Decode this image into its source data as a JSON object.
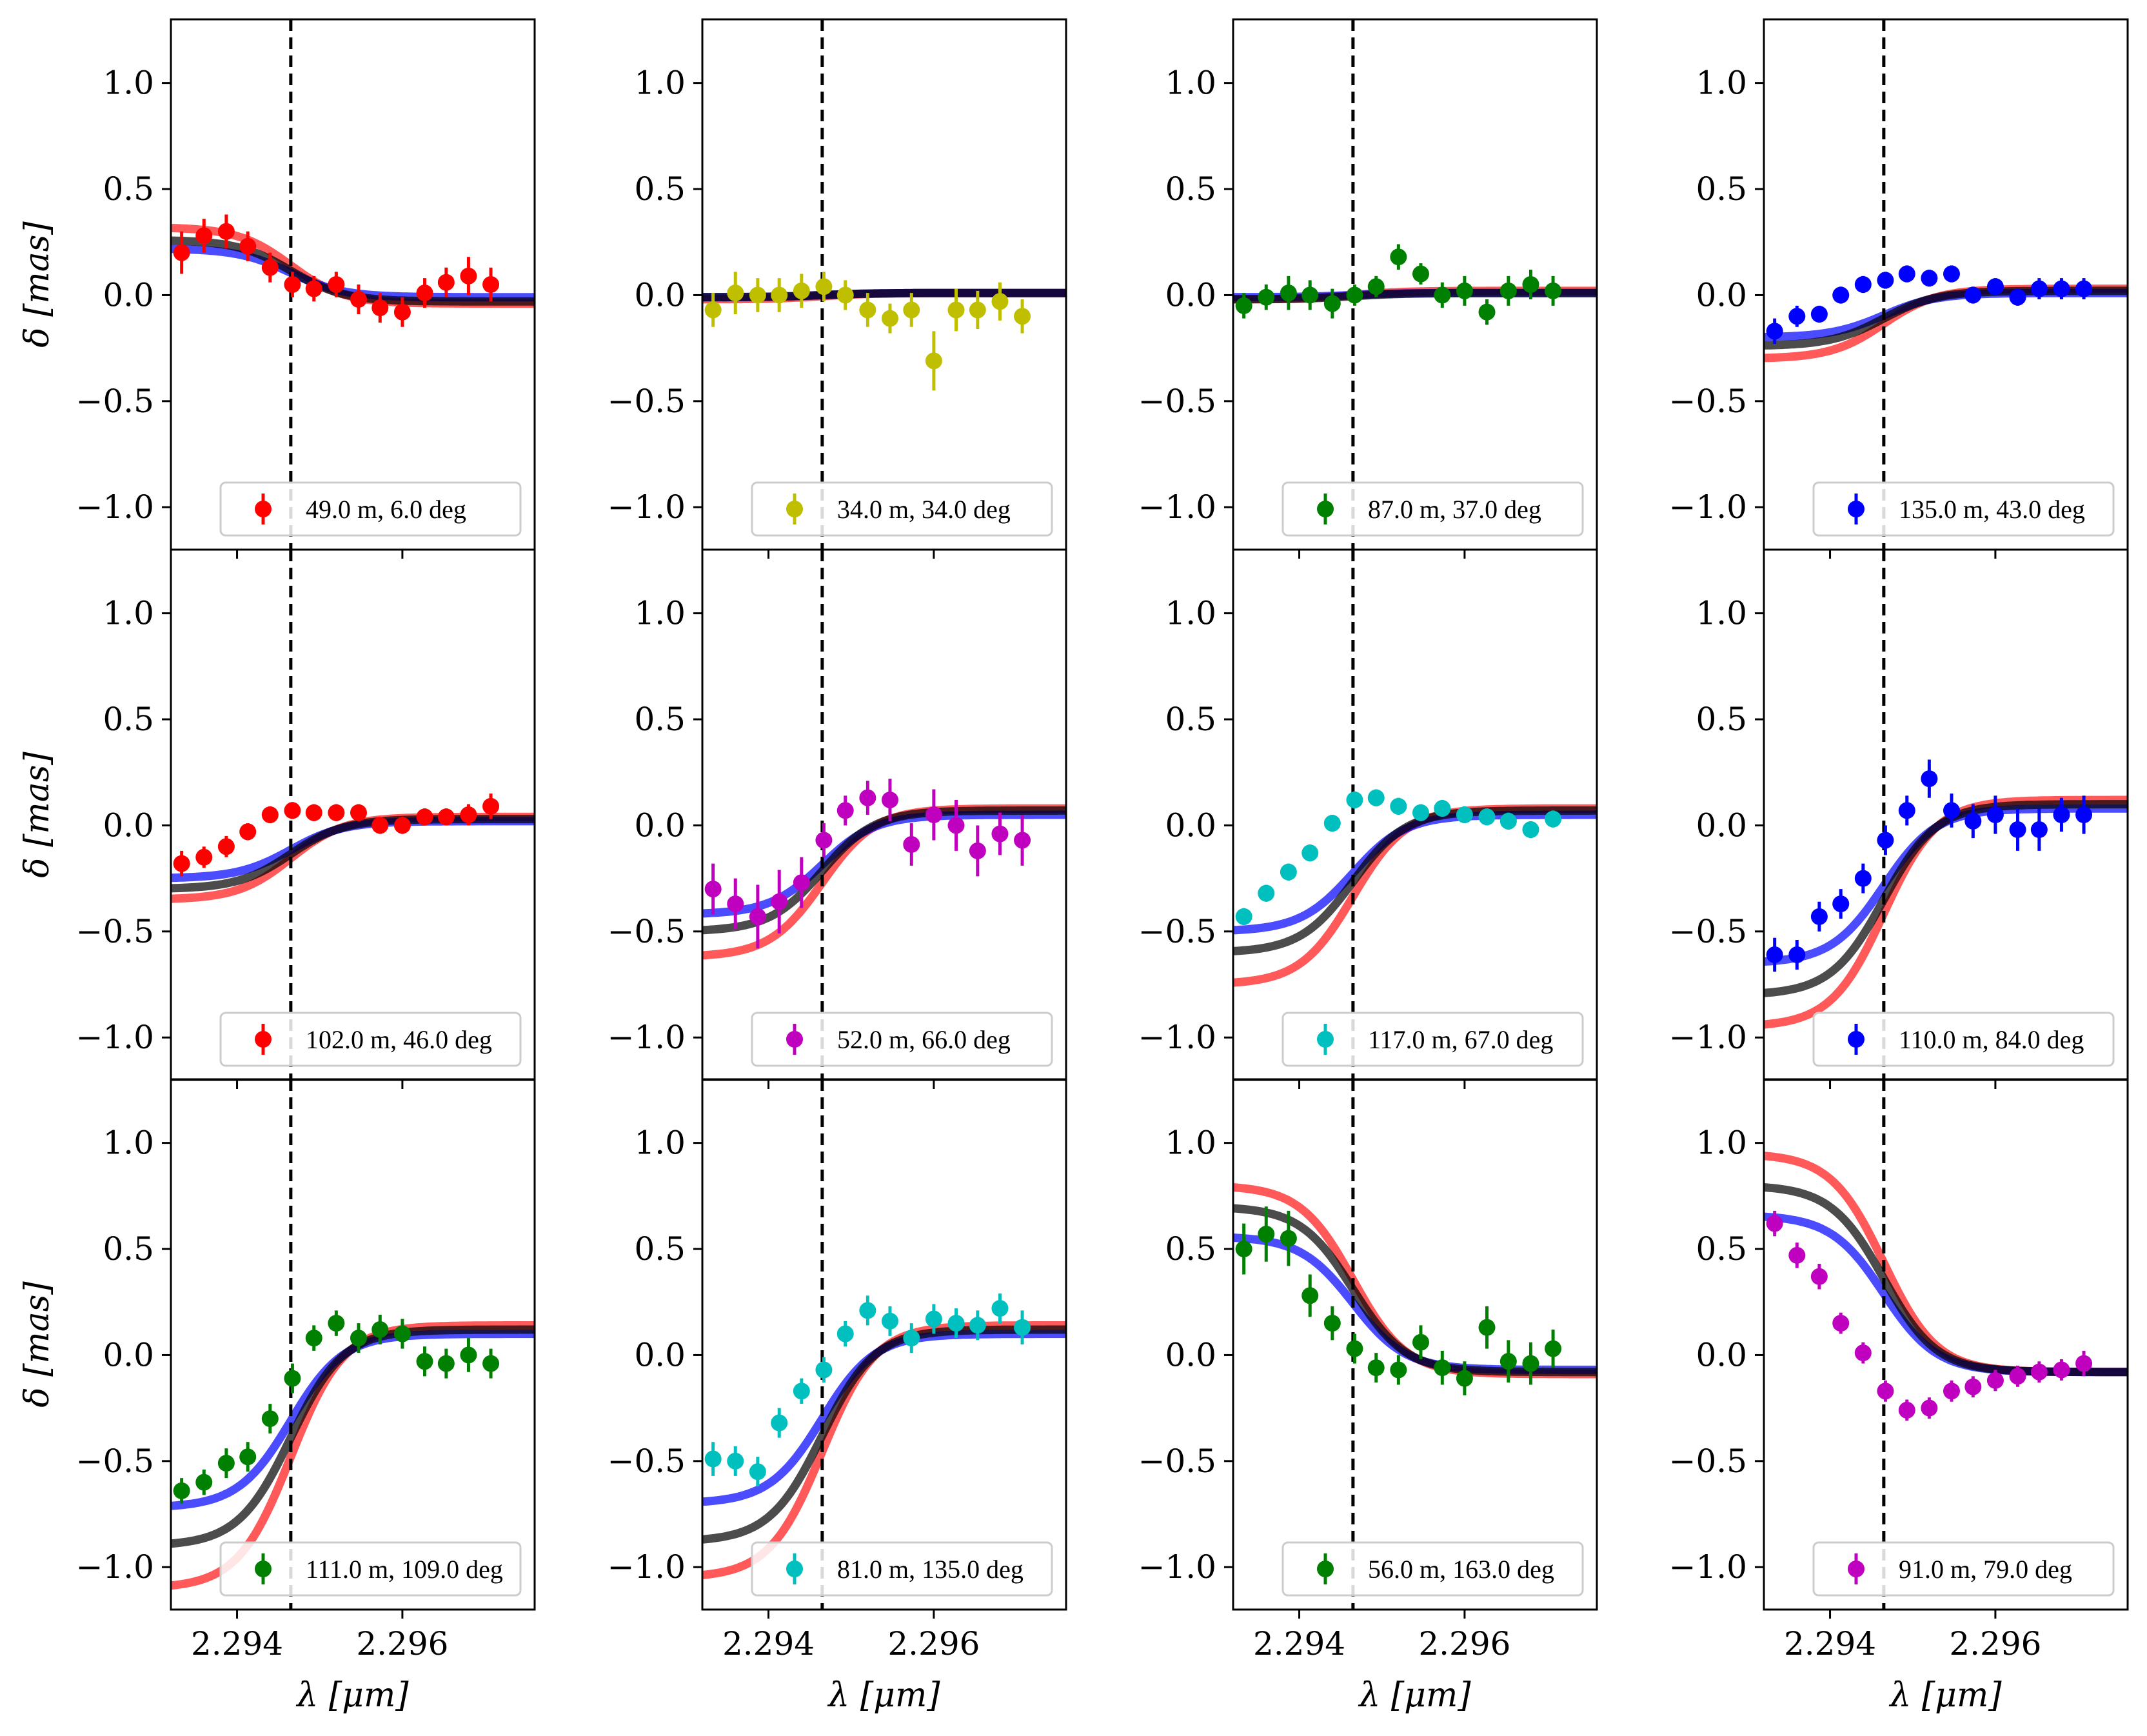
{
  "figure": {
    "xlabel": "λ [μm]",
    "ylabel": "δ [mas]",
    "ylim": [
      -1.2,
      1.3
    ],
    "line_wavelength": 2.29465,
    "yticks": [
      1.0,
      0.5,
      0.0,
      -0.5,
      -1.0
    ],
    "ytick_labels": [
      "1.0",
      "0.5",
      "0.0",
      "−0.5",
      "−1.0"
    ],
    "xticks": [
      2.294,
      2.296
    ],
    "xtick_labels": [
      "2.294",
      "2.296"
    ],
    "model_colors": {
      "red": "#ff0000",
      "blue": "#0000ff",
      "black": "#000000"
    }
  },
  "chart_data": [
    {
      "type": "scatter",
      "legend": "49.0 m, 6.0 deg",
      "color": "#ff0000",
      "xlim": [
        2.2932,
        2.2976
      ],
      "x": [
        2.29333,
        2.2936,
        2.29387,
        2.29413,
        2.2944,
        2.29467,
        2.29493,
        2.2952,
        2.29547,
        2.29573,
        2.296,
        2.29627,
        2.29653,
        2.2968,
        2.29707
      ],
      "y": [
        0.2,
        0.28,
        0.3,
        0.23,
        0.13,
        0.05,
        0.03,
        0.05,
        -0.02,
        -0.06,
        -0.08,
        0.01,
        0.06,
        0.09,
        0.05
      ],
      "err": [
        0.1,
        0.08,
        0.08,
        0.07,
        0.07,
        0.06,
        0.06,
        0.06,
        0.07,
        0.07,
        0.07,
        0.07,
        0.07,
        0.09,
        0.08
      ],
      "models": {
        "red": {
          "a": 0.32,
          "b": -0.04
        },
        "black": {
          "a": 0.26,
          "b": -0.03
        },
        "blue": {
          "a": 0.22,
          "b": -0.01
        }
      }
    },
    {
      "type": "scatter",
      "legend": "34.0 m, 34.0 deg",
      "color": "#bfbf00",
      "xlim": [
        2.2932,
        2.2976
      ],
      "x": [
        2.29333,
        2.2936,
        2.29387,
        2.29413,
        2.2944,
        2.29467,
        2.29493,
        2.2952,
        2.29547,
        2.29573,
        2.296,
        2.29627,
        2.29653,
        2.2968,
        2.29707
      ],
      "y": [
        -0.07,
        0.01,
        0.0,
        0.0,
        0.02,
        0.04,
        0.0,
        -0.07,
        -0.11,
        -0.07,
        -0.31,
        -0.07,
        -0.07,
        -0.03,
        -0.1
      ],
      "err": [
        0.08,
        0.1,
        0.08,
        0.08,
        0.08,
        0.07,
        0.07,
        0.08,
        0.07,
        0.08,
        0.14,
        0.1,
        0.09,
        0.09,
        0.08
      ],
      "models": {
        "red": {
          "a": -0.02,
          "b": 0.01
        },
        "black": {
          "a": -0.01,
          "b": 0.01
        },
        "blue": {
          "a": -0.01,
          "b": 0.01
        }
      }
    },
    {
      "type": "scatter",
      "legend": "87.0 m, 37.0 deg",
      "color": "#008000",
      "xlim": [
        2.2932,
        2.2976
      ],
      "x": [
        2.29333,
        2.2936,
        2.29387,
        2.29413,
        2.2944,
        2.29467,
        2.29493,
        2.2952,
        2.29547,
        2.29573,
        2.296,
        2.29627,
        2.29653,
        2.2968,
        2.29707
      ],
      "y": [
        -0.05,
        -0.01,
        0.01,
        0.0,
        -0.04,
        0.0,
        0.04,
        0.18,
        0.1,
        0.0,
        0.02,
        -0.08,
        0.02,
        0.05,
        0.02
      ],
      "err": [
        0.06,
        0.06,
        0.08,
        0.07,
        0.07,
        0.05,
        0.05,
        0.06,
        0.05,
        0.06,
        0.07,
        0.06,
        0.07,
        0.07,
        0.07
      ],
      "models": {
        "red": {
          "a": -0.02,
          "b": 0.02
        },
        "black": {
          "a": -0.02,
          "b": 0.01
        },
        "blue": {
          "a": -0.01,
          "b": 0.01
        }
      }
    },
    {
      "type": "scatter",
      "legend": "135.0 m, 43.0 deg",
      "color": "#0000ff",
      "xlim": [
        2.2932,
        2.2976
      ],
      "x": [
        2.29333,
        2.2936,
        2.29387,
        2.29413,
        2.2944,
        2.29467,
        2.29493,
        2.2952,
        2.29547,
        2.29573,
        2.296,
        2.29627,
        2.29653,
        2.2968,
        2.29707
      ],
      "y": [
        -0.17,
        -0.1,
        -0.09,
        0.0,
        0.05,
        0.07,
        0.1,
        0.08,
        0.1,
        0.0,
        0.04,
        -0.01,
        0.03,
        0.03,
        0.03
      ],
      "err": [
        0.06,
        0.05,
        0.04,
        0.04,
        0.04,
        0.04,
        0.04,
        0.04,
        0.04,
        0.04,
        0.04,
        0.04,
        0.05,
        0.05,
        0.05
      ],
      "models": {
        "red": {
          "a": -0.3,
          "b": 0.03
        },
        "black": {
          "a": -0.24,
          "b": 0.02
        },
        "blue": {
          "a": -0.2,
          "b": 0.01
        }
      }
    },
    {
      "type": "scatter",
      "legend": "102.0 m, 46.0 deg",
      "color": "#ff0000",
      "xlim": [
        2.2932,
        2.2976
      ],
      "x": [
        2.29333,
        2.2936,
        2.29387,
        2.29413,
        2.2944,
        2.29467,
        2.29493,
        2.2952,
        2.29547,
        2.29573,
        2.296,
        2.29627,
        2.29653,
        2.2968,
        2.29707
      ],
      "y": [
        -0.18,
        -0.15,
        -0.1,
        -0.03,
        0.05,
        0.07,
        0.06,
        0.06,
        0.06,
        0.0,
        0.0,
        0.04,
        0.04,
        0.05,
        0.09
      ],
      "err": [
        0.06,
        0.05,
        0.05,
        0.04,
        0.04,
        0.04,
        0.04,
        0.04,
        0.04,
        0.04,
        0.04,
        0.04,
        0.04,
        0.05,
        0.06
      ],
      "models": {
        "red": {
          "a": -0.35,
          "b": 0.04
        },
        "black": {
          "a": -0.3,
          "b": 0.03
        },
        "blue": {
          "a": -0.25,
          "b": 0.02
        }
      }
    },
    {
      "type": "scatter",
      "legend": "52.0 m, 66.0 deg",
      "color": "#bf00bf",
      "xlim": [
        2.2932,
        2.2976
      ],
      "x": [
        2.29333,
        2.2936,
        2.29387,
        2.29413,
        2.2944,
        2.29467,
        2.29493,
        2.2952,
        2.29547,
        2.29573,
        2.296,
        2.29627,
        2.29653,
        2.2968,
        2.29707
      ],
      "y": [
        -0.3,
        -0.37,
        -0.43,
        -0.36,
        -0.27,
        -0.07,
        0.07,
        0.13,
        0.12,
        -0.09,
        0.05,
        0.0,
        -0.12,
        -0.04,
        -0.07
      ],
      "err": [
        0.12,
        0.12,
        0.15,
        0.15,
        0.12,
        0.08,
        0.07,
        0.08,
        0.1,
        0.1,
        0.12,
        0.12,
        0.12,
        0.1,
        0.12
      ],
      "models": {
        "red": {
          "a": -0.62,
          "b": 0.08
        },
        "black": {
          "a": -0.5,
          "b": 0.07
        },
        "blue": {
          "a": -0.42,
          "b": 0.05
        }
      }
    },
    {
      "type": "scatter",
      "legend": "117.0 m, 67.0 deg",
      "color": "#00bfbf",
      "xlim": [
        2.2932,
        2.2976
      ],
      "x": [
        2.29333,
        2.2936,
        2.29387,
        2.29413,
        2.2944,
        2.29467,
        2.29493,
        2.2952,
        2.29547,
        2.29573,
        2.296,
        2.29627,
        2.29653,
        2.2968,
        2.29707
      ],
      "y": [
        -0.43,
        -0.32,
        -0.22,
        -0.13,
        0.01,
        0.12,
        0.13,
        0.09,
        0.06,
        0.08,
        0.05,
        0.04,
        0.02,
        -0.02,
        0.03
      ],
      "err": [
        0.04,
        0.04,
        0.04,
        0.04,
        0.04,
        0.04,
        0.04,
        0.04,
        0.04,
        0.04,
        0.04,
        0.04,
        0.04,
        0.04,
        0.04
      ],
      "models": {
        "red": {
          "a": -0.75,
          "b": 0.08
        },
        "black": {
          "a": -0.6,
          "b": 0.07
        },
        "blue": {
          "a": -0.5,
          "b": 0.05
        }
      }
    },
    {
      "type": "scatter",
      "legend": "110.0 m, 84.0 deg",
      "color": "#0000ff",
      "xlim": [
        2.2932,
        2.2976
      ],
      "x": [
        2.29333,
        2.2936,
        2.29387,
        2.29413,
        2.2944,
        2.29467,
        2.29493,
        2.2952,
        2.29547,
        2.29573,
        2.296,
        2.29627,
        2.29653,
        2.2968,
        2.29707
      ],
      "y": [
        -0.61,
        -0.61,
        -0.43,
        -0.37,
        -0.25,
        -0.07,
        0.07,
        0.22,
        0.07,
        0.02,
        0.05,
        -0.02,
        -0.02,
        0.05,
        0.05
      ],
      "err": [
        0.08,
        0.07,
        0.07,
        0.07,
        0.07,
        0.07,
        0.07,
        0.09,
        0.08,
        0.08,
        0.09,
        0.1,
        0.1,
        0.08,
        0.09
      ],
      "models": {
        "red": {
          "a": -0.95,
          "b": 0.12
        },
        "black": {
          "a": -0.8,
          "b": 0.1
        },
        "blue": {
          "a": -0.65,
          "b": 0.08
        }
      }
    },
    {
      "type": "scatter",
      "legend": "111.0 m, 109.0 deg",
      "color": "#008000",
      "xlim": [
        2.2932,
        2.2976
      ],
      "x": [
        2.29333,
        2.2936,
        2.29387,
        2.29413,
        2.2944,
        2.29467,
        2.29493,
        2.2952,
        2.29547,
        2.29573,
        2.296,
        2.29627,
        2.29653,
        2.2968,
        2.29707
      ],
      "y": [
        -0.64,
        -0.6,
        -0.51,
        -0.48,
        -0.3,
        -0.11,
        0.08,
        0.15,
        0.08,
        0.12,
        0.1,
        -0.03,
        -0.04,
        0.0,
        -0.04
      ],
      "err": [
        0.06,
        0.06,
        0.07,
        0.07,
        0.07,
        0.07,
        0.06,
        0.06,
        0.07,
        0.07,
        0.07,
        0.07,
        0.07,
        0.08,
        0.07
      ],
      "models": {
        "red": {
          "a": -1.1,
          "b": 0.14
        },
        "black": {
          "a": -0.9,
          "b": 0.12
        },
        "blue": {
          "a": -0.72,
          "b": 0.1
        }
      }
    },
    {
      "type": "scatter",
      "legend": "81.0 m, 135.0 deg",
      "color": "#00bfbf",
      "xlim": [
        2.2932,
        2.2976
      ],
      "x": [
        2.29333,
        2.2936,
        2.29387,
        2.29413,
        2.2944,
        2.29467,
        2.29493,
        2.2952,
        2.29547,
        2.29573,
        2.296,
        2.29627,
        2.29653,
        2.2968,
        2.29707
      ],
      "y": [
        -0.49,
        -0.5,
        -0.55,
        -0.32,
        -0.17,
        -0.07,
        0.1,
        0.21,
        0.16,
        0.08,
        0.17,
        0.15,
        0.14,
        0.22,
        0.13
      ],
      "err": [
        0.08,
        0.07,
        0.07,
        0.07,
        0.06,
        0.06,
        0.06,
        0.07,
        0.07,
        0.07,
        0.07,
        0.07,
        0.07,
        0.07,
        0.08
      ],
      "models": {
        "red": {
          "a": -1.05,
          "b": 0.14
        },
        "black": {
          "a": -0.88,
          "b": 0.12
        },
        "blue": {
          "a": -0.7,
          "b": 0.1
        }
      }
    },
    {
      "type": "scatter",
      "legend": "56.0 m, 163.0 deg",
      "color": "#008000",
      "xlim": [
        2.2932,
        2.2976
      ],
      "x": [
        2.29333,
        2.2936,
        2.29387,
        2.29413,
        2.2944,
        2.29467,
        2.29493,
        2.2952,
        2.29547,
        2.29573,
        2.296,
        2.29627,
        2.29653,
        2.2968,
        2.29707
      ],
      "y": [
        0.5,
        0.57,
        0.55,
        0.28,
        0.15,
        0.03,
        -0.06,
        -0.07,
        0.06,
        -0.06,
        -0.11,
        0.13,
        -0.03,
        -0.04,
        0.03
      ],
      "err": [
        0.12,
        0.13,
        0.13,
        0.1,
        0.08,
        0.07,
        0.07,
        0.07,
        0.08,
        0.08,
        0.08,
        0.1,
        0.1,
        0.1,
        0.09
      ],
      "models": {
        "red": {
          "a": 0.8,
          "b": -0.09
        },
        "black": {
          "a": 0.7,
          "b": -0.08
        },
        "blue": {
          "a": 0.56,
          "b": -0.07
        }
      }
    },
    {
      "type": "scatter",
      "legend": "91.0 m, 79.0 deg",
      "color": "#bf00bf",
      "xlim": [
        2.2932,
        2.2976
      ],
      "x": [
        2.29333,
        2.2936,
        2.29387,
        2.29413,
        2.2944,
        2.29467,
        2.29493,
        2.2952,
        2.29547,
        2.29573,
        2.296,
        2.29627,
        2.29653,
        2.2968,
        2.29707
      ],
      "y": [
        0.62,
        0.47,
        0.37,
        0.15,
        0.01,
        -0.17,
        -0.26,
        -0.25,
        -0.17,
        -0.15,
        -0.12,
        -0.1,
        -0.08,
        -0.07,
        -0.04
      ],
      "err": [
        0.06,
        0.06,
        0.06,
        0.05,
        0.05,
        0.05,
        0.05,
        0.05,
        0.05,
        0.05,
        0.05,
        0.05,
        0.05,
        0.05,
        0.06
      ],
      "models": {
        "red": {
          "a": 0.95,
          "b": -0.08
        },
        "black": {
          "a": 0.8,
          "b": -0.08
        },
        "blue": {
          "a": 0.66,
          "b": -0.08
        }
      }
    }
  ]
}
